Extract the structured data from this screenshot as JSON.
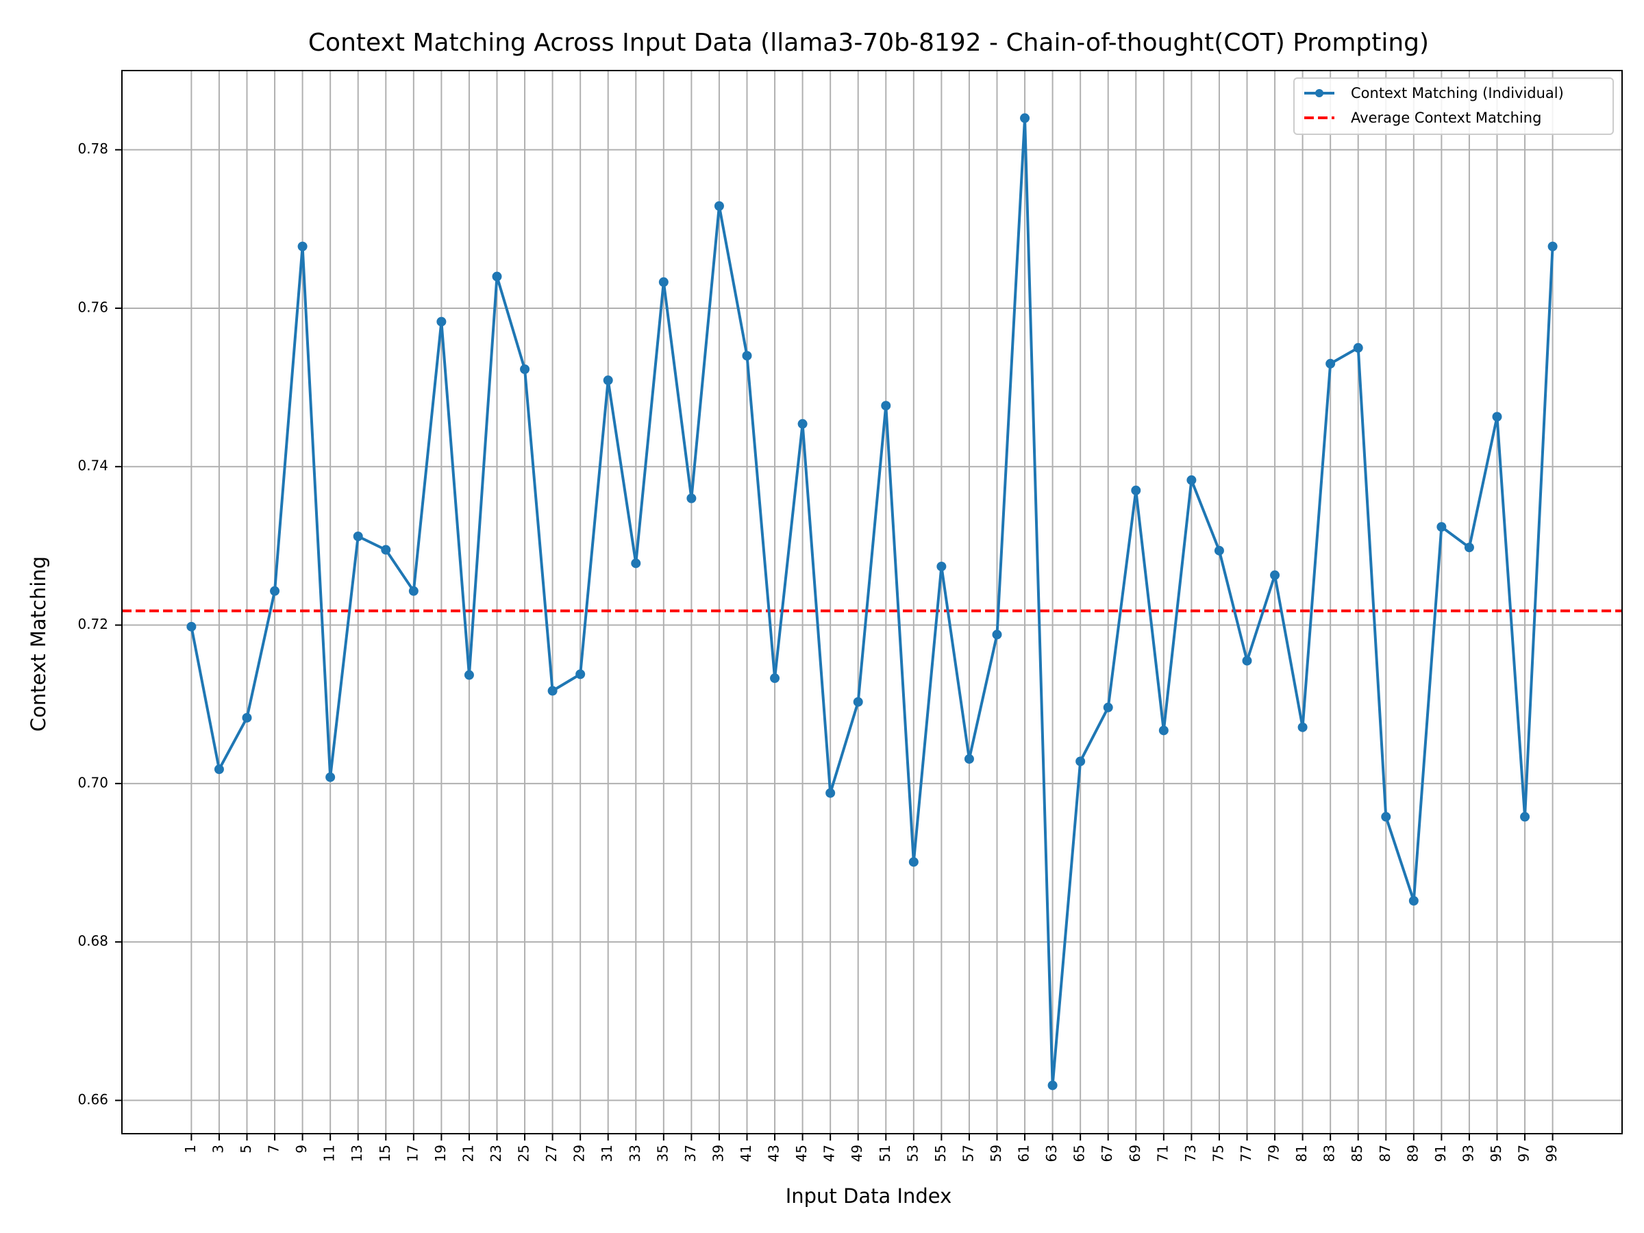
{
  "chart_data": {
    "type": "line",
    "title": "Context Matching Across Input Data (llama3-70b-8192 - Chain-of-thought(COT) Prompting)",
    "xlabel": "Input Data Index",
    "ylabel": "Context Matching",
    "xlim": [
      -4,
      104
    ],
    "ylim": [
      0.6558,
      0.79
    ],
    "x_ticks": [
      1,
      3,
      5,
      7,
      9,
      11,
      13,
      15,
      17,
      19,
      21,
      23,
      25,
      27,
      29,
      31,
      33,
      35,
      37,
      39,
      41,
      43,
      45,
      47,
      49,
      51,
      53,
      55,
      57,
      59,
      61,
      63,
      65,
      67,
      69,
      71,
      73,
      75,
      77,
      79,
      81,
      83,
      85,
      87,
      89,
      91,
      93,
      95,
      97,
      99
    ],
    "y_ticks": [
      0.66,
      0.68,
      0.7,
      0.72,
      0.74,
      0.76,
      0.78
    ],
    "y_tick_labels": [
      "0.66",
      "0.68",
      "0.70",
      "0.72",
      "0.74",
      "0.76",
      "0.78"
    ],
    "grid": true,
    "legend_position": "top-right",
    "series": [
      {
        "name": "Context Matching (Individual)",
        "color": "#1f77b4",
        "style": "solid-with-markers",
        "x": [
          1,
          3,
          5,
          7,
          9,
          11,
          13,
          15,
          17,
          19,
          21,
          23,
          25,
          27,
          29,
          31,
          33,
          35,
          37,
          39,
          41,
          43,
          45,
          47,
          49,
          51,
          53,
          55,
          57,
          59,
          61,
          63,
          65,
          67,
          69,
          71,
          73,
          75,
          77,
          79,
          81,
          83,
          85,
          87,
          89,
          91,
          93,
          95,
          97,
          99
        ],
        "y": [
          0.7198,
          0.7018,
          0.7083,
          0.7243,
          0.7678,
          0.7008,
          0.7312,
          0.7295,
          0.7243,
          0.7583,
          0.7137,
          0.764,
          0.7523,
          0.7117,
          0.7138,
          0.7509,
          0.7278,
          0.7633,
          0.736,
          0.7729,
          0.754,
          0.7133,
          0.7454,
          0.6988,
          0.7103,
          0.7477,
          0.6901,
          0.7274,
          0.7031,
          0.7188,
          0.784,
          0.6619,
          0.7028,
          0.7096,
          0.737,
          0.7067,
          0.7383,
          0.7294,
          0.7155,
          0.7263,
          0.7071,
          0.753,
          0.755,
          0.6958,
          0.6852,
          0.7324,
          0.7298,
          0.7463,
          0.6958,
          0.7678
        ]
      },
      {
        "name": "Average Context Matching",
        "color": "#ff0000",
        "style": "dashed",
        "value": 0.7218
      }
    ]
  }
}
